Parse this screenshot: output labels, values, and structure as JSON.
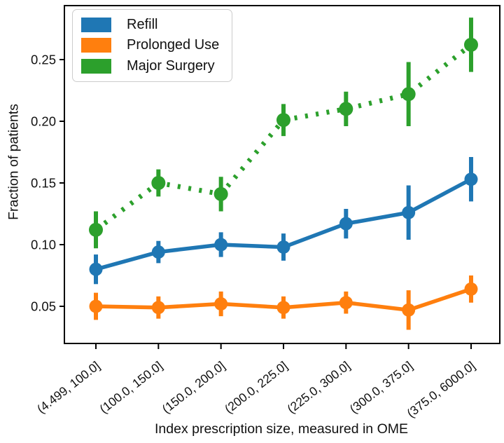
{
  "chart_data": {
    "type": "line",
    "title": "",
    "xlabel": "Index prescription size, measured in OME",
    "ylabel": "Fraction of patients",
    "categories": [
      "(4.499, 100.0]",
      "(100.0, 150.0]",
      "(150.0, 200.0]",
      "(200.0, 225.0]",
      "(225.0, 300.0]",
      "(300.0, 375.0]",
      "(375.0, 6000.0]"
    ],
    "yticks": [
      0.05,
      0.1,
      0.15,
      0.2,
      0.25
    ],
    "ylim": [
      0.02,
      0.294
    ],
    "grid": false,
    "legend_position": "upper left",
    "x_tick_rotation_deg": 38,
    "error_bars": true,
    "marker": "circle",
    "series": [
      {
        "name": "Refill",
        "color": "#1f77b4",
        "line_style": "solid",
        "values": [
          0.08,
          0.094,
          0.1,
          0.098,
          0.117,
          0.126,
          0.153
        ],
        "errors": [
          0.012,
          0.009,
          0.01,
          0.011,
          0.012,
          0.022,
          0.018
        ]
      },
      {
        "name": "Prolonged Use",
        "color": "#ff7f0e",
        "line_style": "solid",
        "values": [
          0.05,
          0.049,
          0.052,
          0.049,
          0.053,
          0.047,
          0.064
        ],
        "errors": [
          0.011,
          0.009,
          0.01,
          0.009,
          0.009,
          0.016,
          0.011
        ]
      },
      {
        "name": "Major Surgery",
        "color": "#2ca02c",
        "line_style": "dotted",
        "values": [
          0.112,
          0.15,
          0.141,
          0.201,
          0.21,
          0.222,
          0.262
        ],
        "errors": [
          0.015,
          0.011,
          0.014,
          0.013,
          0.014,
          0.026,
          0.022
        ]
      }
    ]
  }
}
